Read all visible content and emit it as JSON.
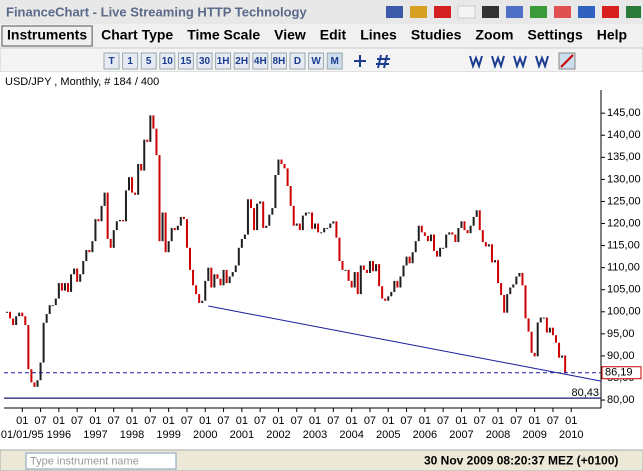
{
  "window_title": "FinanceChart - Live Streaming HTTP Technology",
  "menu": [
    "Instruments",
    "Chart Type",
    "Time Scale",
    "View",
    "Edit",
    "Lines",
    "Studies",
    "Zoom",
    "Settings",
    "Help"
  ],
  "toolbar": [
    "T",
    "1",
    "5",
    "10",
    "15",
    "30",
    "1H",
    "2H",
    "4H",
    "8H",
    "D",
    "W",
    "M"
  ],
  "chart_data": {
    "type": "price",
    "title": "USD/JPY , Monthly, # 184 / 400",
    "categories": [
      null,
      null,
      null,
      null,
      null,
      "01",
      null,
      null,
      null,
      null,
      null,
      "07",
      null,
      null,
      null,
      null,
      null,
      "01",
      null,
      null,
      null,
      null,
      null,
      "07",
      null,
      null,
      null,
      null,
      null,
      "01",
      null,
      null,
      null,
      null,
      null,
      "07",
      null,
      null,
      null,
      null,
      null,
      "01",
      null,
      null,
      null,
      null,
      null,
      "07",
      null,
      null,
      null,
      null,
      null,
      "01",
      null,
      null,
      null,
      null,
      null,
      "07",
      null,
      null,
      null,
      null,
      null,
      "01",
      null,
      null,
      null,
      null,
      null,
      "07",
      null,
      null,
      null,
      null,
      null,
      "01",
      null,
      null,
      null,
      null,
      null,
      "07",
      null,
      null,
      null,
      null,
      null,
      "01",
      null,
      null,
      null,
      null,
      null,
      "07",
      null,
      null,
      null,
      null,
      null,
      "01",
      null,
      null,
      null,
      null,
      null,
      "07",
      null,
      null,
      null,
      null,
      null,
      "01",
      null,
      null,
      null,
      null,
      null,
      "07",
      null,
      null,
      null,
      null,
      null,
      "01",
      null,
      null,
      null,
      null,
      null,
      "07",
      null,
      null,
      null,
      null,
      null,
      "01",
      null,
      null,
      null,
      null,
      null,
      "07",
      null,
      null,
      null,
      null,
      null,
      "01",
      null,
      null,
      null,
      null,
      null,
      "07",
      null,
      null,
      null,
      null,
      null,
      "01",
      null,
      null,
      null,
      null,
      null,
      "07",
      null,
      null,
      null,
      null,
      null,
      "01",
      null,
      null,
      null,
      null,
      null,
      "07",
      null,
      null,
      null,
      null,
      null,
      "01"
    ],
    "year_labels": [
      "01/01/95",
      "1996",
      "1997",
      "1998",
      "1999",
      "2000",
      "2001",
      "2002",
      "2003",
      "2004",
      "2005",
      "2006",
      "2007",
      "2008",
      "2009",
      "2010"
    ],
    "values": [
      100,
      98.5,
      97,
      99,
      99.8,
      99,
      97,
      87,
      84,
      83,
      84.5,
      88.5,
      97.5,
      99.5,
      101.5,
      101.5,
      103,
      106.5,
      104.8,
      106.5,
      104.5,
      108.5,
      109.8,
      106.8,
      108.5,
      111.5,
      114,
      113.5,
      116,
      121,
      120.5,
      124,
      127,
      116.5,
      114.5,
      118.5,
      120.5,
      120.8,
      120.5,
      127.5,
      130.5,
      127,
      126.5,
      133.5,
      132,
      139,
      138.5,
      144.5,
      141.5,
      135.5,
      116,
      122.5,
      113.5,
      116,
      119,
      118.5,
      119.5,
      121.5,
      121,
      114.5,
      109.5,
      106,
      104,
      102,
      102.5,
      107,
      110,
      105.5,
      108.5,
      107.5,
      106,
      109.5,
      106.5,
      108,
      109,
      110.5,
      114.5,
      116.5,
      117.5,
      125.5,
      123.5,
      118.5,
      124.5,
      125,
      119,
      119.5,
      122,
      123.5,
      131,
      134.5,
      133.5,
      132.5,
      128.5,
      124,
      119.5,
      120,
      118.5,
      121.8,
      122.5,
      122.5,
      118.8,
      120,
      118,
      118,
      119,
      119,
      120,
      120.5,
      116.8,
      111.5,
      109.5,
      109.5,
      107,
      105.5,
      109,
      104,
      110.5,
      109.5,
      108.8,
      111.5,
      109.2,
      110.8,
      105.8,
      103,
      102.5,
      103.5,
      104.5,
      107,
      105.5,
      108,
      110.5,
      112.5,
      111,
      113.5,
      116,
      119.5,
      118,
      117.2,
      116,
      117.5,
      113.8,
      112.5,
      114.5,
      114.5,
      117.5,
      118,
      117.5,
      115.8,
      119,
      120.5,
      118.5,
      117.8,
      119.5,
      121.5,
      123,
      118.5,
      115.8,
      114.8,
      115.3,
      111.2,
      111.7,
      106.5,
      103.8,
      99.8,
      104,
      105.5,
      106.2,
      108,
      108.8,
      106,
      98.5,
      95.5,
      90.7,
      89.9,
      97.6,
      98.7,
      98.7,
      95.3,
      96.4,
      94.7,
      93,
      89.6,
      90.1,
      86.19,
      null,
      null
    ],
    "up_color": "#1e1e1e",
    "down_color": "#cc0000",
    "ylim": [
      78.2,
      149.8
    ],
    "yticks": [
      {
        "value": 80,
        "label": "80,00"
      },
      {
        "value": 85,
        "label": "85,00"
      },
      {
        "value": 90,
        "label": "90,00"
      },
      {
        "value": 95,
        "label": "95,00"
      },
      {
        "value": 100,
        "label": "100,00"
      },
      {
        "value": 105,
        "label": "105,00"
      },
      {
        "value": 110,
        "label": "110,00"
      },
      {
        "value": 115,
        "label": "115,00"
      },
      {
        "value": 120,
        "label": "120,00"
      },
      {
        "value": 125,
        "label": "125,00"
      },
      {
        "value": 130,
        "label": "130,00"
      },
      {
        "value": 135,
        "label": "135,00"
      },
      {
        "value": 140,
        "label": "140,00"
      },
      {
        "value": 145,
        "label": "145,00"
      }
    ],
    "current_price": {
      "value": 86.19,
      "label": "86,19"
    },
    "support": {
      "value": 80.43,
      "label": "80,43"
    },
    "trendline": {
      "from": [
        66,
        101.3
      ],
      "to": [
        194.8,
        84.3
      ]
    }
  },
  "status": {
    "placeholder": "Type instrument name",
    "datetime": "30 Nov 2009 08:20:37",
    "timezone": "MEZ (+0100)"
  }
}
